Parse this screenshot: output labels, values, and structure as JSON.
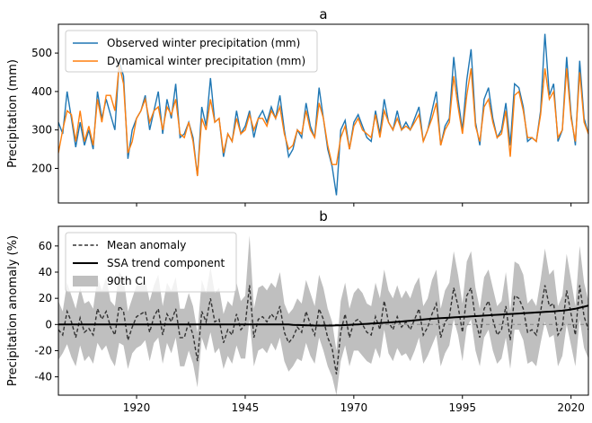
{
  "chart_data": [
    {
      "panel": "a",
      "type": "line",
      "title": "a",
      "xlabel": "",
      "ylabel": "Precipitation (mm)",
      "xlim": [
        1902,
        2024
      ],
      "ylim": [
        110,
        575
      ],
      "yticks": [
        200,
        300,
        400,
        500
      ],
      "xticks": [
        1920,
        1945,
        1970,
        1995,
        2020
      ],
      "grid": false,
      "legend_position": "top-left",
      "x": [
        1902,
        1903,
        1904,
        1905,
        1906,
        1907,
        1908,
        1909,
        1910,
        1911,
        1912,
        1913,
        1914,
        1915,
        1916,
        1917,
        1918,
        1919,
        1920,
        1921,
        1922,
        1923,
        1924,
        1925,
        1926,
        1927,
        1928,
        1929,
        1930,
        1931,
        1932,
        1933,
        1934,
        1935,
        1936,
        1937,
        1938,
        1939,
        1940,
        1941,
        1942,
        1943,
        1944,
        1945,
        1946,
        1947,
        1948,
        1949,
        1950,
        1951,
        1952,
        1953,
        1954,
        1955,
        1956,
        1957,
        1958,
        1959,
        1960,
        1961,
        1962,
        1963,
        1964,
        1965,
        1966,
        1967,
        1968,
        1969,
        1970,
        1971,
        1972,
        1973,
        1974,
        1975,
        1976,
        1977,
        1978,
        1979,
        1980,
        1981,
        1982,
        1983,
        1984,
        1985,
        1986,
        1987,
        1988,
        1989,
        1990,
        1991,
        1992,
        1993,
        1994,
        1995,
        1996,
        1997,
        1998,
        1999,
        2000,
        2001,
        2002,
        2003,
        2004,
        2005,
        2006,
        2007,
        2008,
        2009,
        2010,
        2011,
        2012,
        2013,
        2014,
        2015,
        2016,
        2017,
        2018,
        2019,
        2020,
        2021,
        2022,
        2023,
        2024
      ],
      "series": [
        {
          "name": "Observed winter precipitation (mm)",
          "color": "#1f77b4",
          "values": [
            320,
            290,
            400,
            330,
            255,
            320,
            260,
            300,
            250,
            400,
            330,
            380,
            340,
            300,
            480,
            440,
            225,
            300,
            330,
            350,
            390,
            300,
            350,
            400,
            290,
            380,
            330,
            420,
            280,
            290,
            320,
            280,
            180,
            360,
            310,
            435,
            320,
            330,
            230,
            290,
            270,
            350,
            290,
            310,
            350,
            280,
            330,
            350,
            320,
            360,
            330,
            390,
            300,
            230,
            250,
            300,
            280,
            370,
            310,
            280,
            410,
            330,
            250,
            205,
            130,
            300,
            325,
            250,
            320,
            340,
            310,
            280,
            270,
            350,
            290,
            380,
            320,
            300,
            350,
            300,
            320,
            300,
            330,
            360,
            270,
            300,
            350,
            400,
            260,
            310,
            330,
            490,
            380,
            300,
            430,
            510,
            320,
            260,
            380,
            410,
            330,
            280,
            300,
            370,
            260,
            420,
            410,
            360,
            270,
            280,
            270,
            350,
            550,
            390,
            420,
            270,
            300,
            490,
            340,
            260,
            480,
            330,
            290
          ],
          "values_note": ""
        },
        {
          "name": "Dynamical winter precipitation (mm)",
          "color": "#ff7f0e",
          "values": [
            240,
            300,
            350,
            340,
            270,
            350,
            270,
            310,
            260,
            380,
            320,
            390,
            390,
            350,
            470,
            420,
            240,
            270,
            330,
            350,
            380,
            320,
            350,
            360,
            300,
            360,
            340,
            380,
            290,
            280,
            320,
            270,
            180,
            330,
            300,
            380,
            320,
            330,
            240,
            290,
            270,
            330,
            290,
            300,
            340,
            300,
            330,
            330,
            310,
            350,
            330,
            360,
            290,
            250,
            260,
            300,
            290,
            350,
            300,
            280,
            370,
            330,
            260,
            210,
            210,
            280,
            310,
            250,
            310,
            330,
            300,
            290,
            280,
            340,
            280,
            350,
            320,
            300,
            330,
            300,
            310,
            300,
            320,
            340,
            270,
            300,
            330,
            370,
            260,
            300,
            320,
            440,
            360,
            290,
            390,
            460,
            310,
            270,
            360,
            380,
            320,
            280,
            290,
            350,
            230,
            390,
            400,
            350,
            280,
            280,
            270,
            340,
            460,
            380,
            400,
            280,
            300,
            460,
            330,
            270,
            450,
            320,
            290
          ]
        }
      ]
    },
    {
      "panel": "b",
      "type": "line",
      "title": "b",
      "xlabel": "",
      "ylabel": "Precipitation anomaly (%)",
      "xlim": [
        1902,
        2024
      ],
      "ylim": [
        -54,
        75
      ],
      "yticks": [
        -40,
        -20,
        0,
        20,
        40,
        60
      ],
      "xticks": [
        1920,
        1945,
        1970,
        1995,
        2020
      ],
      "grid": false,
      "legend_position": "top-left",
      "x": [
        1902,
        1903,
        1904,
        1905,
        1906,
        1907,
        1908,
        1909,
        1910,
        1911,
        1912,
        1913,
        1914,
        1915,
        1916,
        1917,
        1918,
        1919,
        1920,
        1921,
        1922,
        1923,
        1924,
        1925,
        1926,
        1927,
        1928,
        1929,
        1930,
        1931,
        1932,
        1933,
        1934,
        1935,
        1936,
        1937,
        1938,
        1939,
        1940,
        1941,
        1942,
        1943,
        1944,
        1945,
        1946,
        1947,
        1948,
        1949,
        1950,
        1951,
        1952,
        1953,
        1954,
        1955,
        1956,
        1957,
        1958,
        1959,
        1960,
        1961,
        1962,
        1963,
        1964,
        1965,
        1966,
        1967,
        1968,
        1969,
        1970,
        1971,
        1972,
        1973,
        1974,
        1975,
        1976,
        1977,
        1978,
        1979,
        1980,
        1981,
        1982,
        1983,
        1984,
        1985,
        1986,
        1987,
        1988,
        1989,
        1990,
        1991,
        1992,
        1993,
        1994,
        1995,
        1996,
        1997,
        1998,
        1999,
        2000,
        2001,
        2002,
        2003,
        2004,
        2005,
        2006,
        2007,
        2008,
        2009,
        2010,
        2011,
        2012,
        2013,
        2014,
        2015,
        2016,
        2017,
        2018,
        2019,
        2020,
        2021,
        2022,
        2023,
        2024
      ],
      "series": [
        {
          "name": "Mean anomaly",
          "color": "#333333",
          "style": "dashed",
          "values": [
            -4,
            -8,
            10,
            2,
            -10,
            5,
            -6,
            -3,
            -8,
            12,
            4,
            10,
            -2,
            -8,
            14,
            10,
            -12,
            -2,
            6,
            8,
            10,
            -6,
            6,
            12,
            -8,
            8,
            2,
            12,
            -10,
            -10,
            2,
            -8,
            -28,
            10,
            2,
            20,
            2,
            4,
            -14,
            -4,
            -8,
            8,
            -4,
            0,
            30,
            -10,
            4,
            6,
            2,
            8,
            4,
            14,
            -6,
            -14,
            -10,
            -2,
            -6,
            10,
            0,
            -8,
            12,
            4,
            -10,
            -18,
            -38,
            -6,
            8,
            -10,
            2,
            4,
            0,
            -6,
            -8,
            6,
            -4,
            18,
            2,
            -4,
            6,
            -2,
            2,
            -4,
            4,
            12,
            -8,
            -2,
            8,
            16,
            -10,
            2,
            6,
            28,
            14,
            -6,
            22,
            28,
            4,
            -10,
            12,
            18,
            4,
            -8,
            -4,
            14,
            -12,
            22,
            20,
            12,
            -6,
            -4,
            -8,
            10,
            30,
            14,
            16,
            -8,
            -2,
            26,
            8,
            -8,
            30,
            6,
            -4
          ]
        },
        {
          "name": "SSA trend component",
          "color": "#000000",
          "values": [
            0,
            0,
            0,
            0,
            0,
            0,
            0,
            0,
            0,
            0,
            0,
            0,
            0,
            0,
            0,
            0,
            0,
            0,
            0,
            0,
            0,
            0,
            0,
            0,
            0,
            0,
            0,
            0,
            0,
            0,
            0,
            0,
            0,
            0,
            0,
            0,
            0,
            0,
            0,
            0,
            0,
            0,
            0,
            0,
            0,
            0,
            0,
            0,
            0,
            0,
            0,
            0,
            0,
            0,
            -0.3,
            -0.4,
            -0.5,
            -0.6,
            -0.7,
            -0.8,
            -0.8,
            -0.8,
            -0.8,
            -0.8,
            -0.7,
            -0.6,
            -0.5,
            -0.3,
            -0.1,
            0.1,
            0.3,
            0.5,
            0.7,
            0.9,
            1.1,
            1.3,
            1.5,
            1.7,
            2,
            2.3,
            2.6,
            2.9,
            3.2,
            3.5,
            3.8,
            4.1,
            4.4,
            4.6,
            4.8,
            5,
            5.2,
            5.4,
            5.6,
            5.8,
            6,
            6.2,
            6.4,
            6.6,
            6.8,
            7,
            7.2,
            7.4,
            7.6,
            7.8,
            8,
            8.2,
            8.4,
            8.6,
            8.8,
            9,
            9.2,
            9.4,
            9.6,
            9.8,
            10,
            10.3,
            10.6,
            11,
            11.5,
            12,
            12.8,
            13.6,
            14.5
          ]
        },
        {
          "name": "90th CI",
          "color": "#bfbfbf",
          "type": "band",
          "lower": [
            -27,
            -22,
            -15,
            -25,
            -32,
            -16,
            -28,
            -24,
            -30,
            -14,
            -20,
            -16,
            -26,
            -32,
            -14,
            -16,
            -34,
            -22,
            -18,
            -16,
            -12,
            -28,
            -14,
            -10,
            -30,
            -14,
            -22,
            -10,
            -32,
            -32,
            -20,
            -30,
            -48,
            -10,
            -20,
            -6,
            -22,
            -18,
            -34,
            -24,
            -30,
            -16,
            -26,
            -26,
            4,
            -32,
            -20,
            -18,
            -22,
            -14,
            -20,
            -10,
            -28,
            -36,
            -32,
            -26,
            -28,
            -14,
            -24,
            -30,
            -10,
            -20,
            -32,
            -40,
            -54,
            -28,
            -16,
            -32,
            -20,
            -20,
            -24,
            -28,
            -30,
            -18,
            -26,
            -4,
            -22,
            -28,
            -18,
            -24,
            -22,
            -28,
            -20,
            -10,
            -30,
            -24,
            -16,
            -8,
            -32,
            -22,
            -16,
            4,
            -8,
            -28,
            -2,
            4,
            -20,
            -32,
            -10,
            -4,
            -20,
            -30,
            -26,
            -10,
            -34,
            -4,
            -4,
            -12,
            -30,
            -28,
            -32,
            -14,
            2,
            -10,
            -8,
            -32,
            -24,
            0,
            -16,
            -32,
            4,
            -18,
            -26
          ],
          "upper": [
            18,
            10,
            32,
            22,
            12,
            28,
            16,
            18,
            12,
            36,
            26,
            36,
            18,
            14,
            40,
            36,
            10,
            20,
            30,
            32,
            34,
            18,
            30,
            38,
            14,
            32,
            26,
            36,
            12,
            12,
            24,
            14,
            -6,
            34,
            24,
            44,
            24,
            28,
            8,
            18,
            14,
            32,
            18,
            22,
            68,
            12,
            28,
            30,
            26,
            32,
            28,
            40,
            16,
            8,
            12,
            20,
            16,
            34,
            24,
            14,
            38,
            28,
            12,
            2,
            -20,
            18,
            32,
            12,
            24,
            28,
            24,
            16,
            14,
            32,
            20,
            42,
            26,
            20,
            30,
            20,
            26,
            20,
            30,
            36,
            14,
            20,
            34,
            42,
            12,
            26,
            32,
            56,
            38,
            16,
            48,
            56,
            28,
            12,
            36,
            42,
            28,
            14,
            18,
            40,
            10,
            48,
            46,
            38,
            16,
            20,
            14,
            34,
            58,
            38,
            42,
            14,
            22,
            54,
            34,
            14,
            60,
            32,
            18
          ]
        }
      ]
    }
  ]
}
